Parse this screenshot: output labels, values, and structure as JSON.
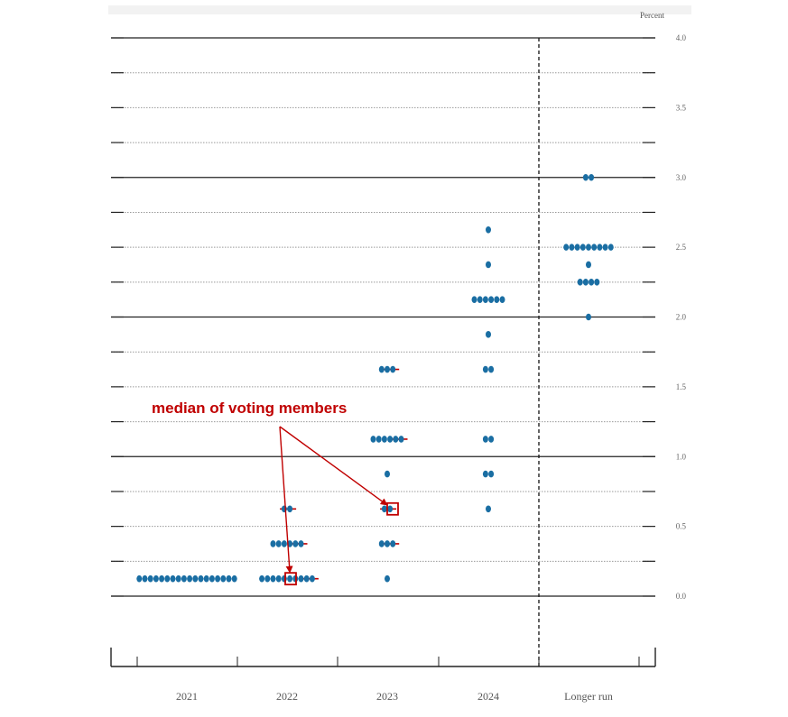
{
  "chart_data": {
    "type": "scatter",
    "subtype": "dot-plot",
    "unit_label": "Percent",
    "categories": [
      "2021",
      "2022",
      "2023",
      "2024",
      "Longer run"
    ],
    "ylim": [
      0.0,
      4.0
    ],
    "yticks": [
      "0.0",
      "0.5",
      "1.0",
      "1.5",
      "2.0",
      "2.5",
      "3.0",
      "3.5",
      "4.0"
    ],
    "grid": true,
    "dots": [
      {
        "category": "2021",
        "values": [
          {
            "y": 0.125,
            "count": 18
          }
        ]
      },
      {
        "category": "2022",
        "values": [
          {
            "y": 0.125,
            "count": 10
          },
          {
            "y": 0.375,
            "count": 6
          },
          {
            "y": 0.625,
            "count": 2
          }
        ]
      },
      {
        "category": "2023",
        "values": [
          {
            "y": 0.125,
            "count": 1
          },
          {
            "y": 0.375,
            "count": 3
          },
          {
            "y": 0.625,
            "count": 2
          },
          {
            "y": 0.875,
            "count": 1
          },
          {
            "y": 1.125,
            "count": 6
          },
          {
            "y": 1.625,
            "count": 3
          }
        ]
      },
      {
        "category": "2024",
        "values": [
          {
            "y": 0.625,
            "count": 1
          },
          {
            "y": 0.875,
            "count": 2
          },
          {
            "y": 1.125,
            "count": 2
          },
          {
            "y": 1.625,
            "count": 2
          },
          {
            "y": 1.875,
            "count": 1
          },
          {
            "y": 2.125,
            "count": 6
          },
          {
            "y": 2.375,
            "count": 1
          },
          {
            "y": 2.625,
            "count": 1
          }
        ]
      },
      {
        "category": "Longer run",
        "values": [
          {
            "y": 2.0,
            "count": 1
          },
          {
            "y": 2.25,
            "count": 4
          },
          {
            "y": 2.375,
            "count": 1
          },
          {
            "y": 2.5,
            "count": 9
          },
          {
            "y": 3.0,
            "count": 2
          }
        ]
      }
    ],
    "median_marks": [
      {
        "category": "2022",
        "y": 0.125
      },
      {
        "category": "2022",
        "y": 0.375
      },
      {
        "category": "2022",
        "y": 0.625
      },
      {
        "category": "2023",
        "y": 0.375
      },
      {
        "category": "2023",
        "y": 0.625
      },
      {
        "category": "2023",
        "y": 1.125
      },
      {
        "category": "2023",
        "y": 1.625
      }
    ],
    "highlighted_medians": [
      {
        "category": "2022",
        "y": 0.125
      },
      {
        "category": "2023",
        "y": 0.625
      }
    ],
    "annotation": "median of voting members",
    "colors": {
      "dot": "#1a6ea3",
      "annotation": "#c00000",
      "axis": "#222222",
      "grid": "#999999"
    }
  }
}
